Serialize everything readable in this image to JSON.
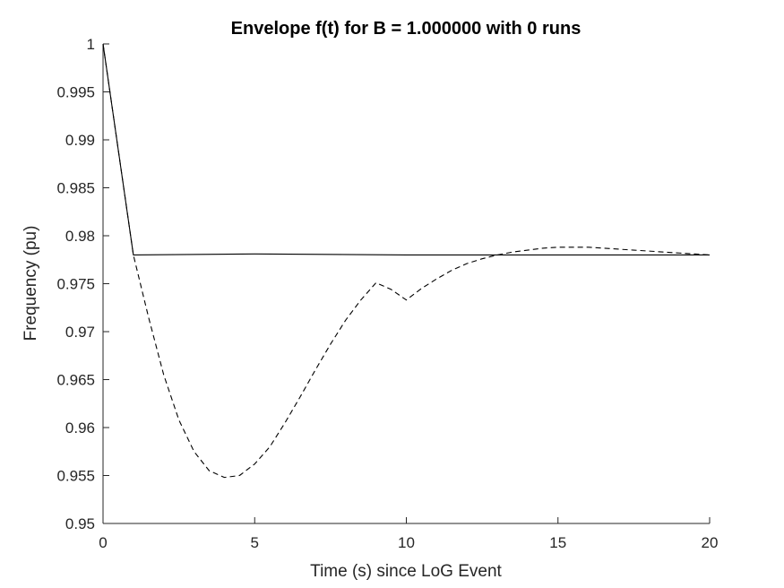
{
  "chart_data": {
    "type": "line",
    "title": "Envelope f(t) for B = 1.000000 with 0 runs",
    "xlabel": "Time (s) since LoG Event",
    "ylabel": "Frequency (pu)",
    "xlim": [
      0,
      20
    ],
    "ylim": [
      0.95,
      1
    ],
    "grid": false,
    "x_ticks": [
      0,
      5,
      10,
      15,
      20
    ],
    "x_tick_labels": [
      "0",
      "5",
      "10",
      "15",
      "20"
    ],
    "y_ticks": [
      0.95,
      0.955,
      0.96,
      0.965,
      0.97,
      0.975,
      0.98,
      0.985,
      0.99,
      0.995,
      1
    ],
    "y_tick_labels": [
      "0.95",
      "0.955",
      "0.96",
      "0.965",
      "0.97",
      "0.975",
      "0.98",
      "0.985",
      "0.99",
      "0.995",
      "1"
    ],
    "series": [
      {
        "style": "solid",
        "color": "#000000",
        "x": [
          0,
          1,
          5,
          10,
          15,
          20
        ],
        "y": [
          1.0,
          0.978,
          0.9781,
          0.978,
          0.978,
          0.978
        ]
      },
      {
        "style": "dashed",
        "color": "#000000",
        "x": [
          0,
          1,
          1.5,
          2,
          2.5,
          3,
          3.5,
          4,
          4.5,
          5,
          5.5,
          6,
          6.5,
          7,
          7.5,
          8,
          8.5,
          9,
          9.5,
          10,
          10.5,
          11,
          11.5,
          12,
          12.5,
          13,
          13.5,
          14,
          14.5,
          15,
          15.5,
          16,
          16.5,
          17,
          17.5,
          18,
          18.5,
          19,
          19.5,
          20
        ],
        "y": [
          1.0,
          0.978,
          0.9715,
          0.9655,
          0.9608,
          0.9575,
          0.9555,
          0.9548,
          0.955,
          0.9562,
          0.958,
          0.9605,
          0.9632,
          0.966,
          0.9687,
          0.9712,
          0.9733,
          0.9751,
          0.9744,
          0.9733,
          0.9745,
          0.9755,
          0.9764,
          0.9771,
          0.9776,
          0.978,
          0.9783,
          0.9785,
          0.9787,
          0.9788,
          0.9788,
          0.9788,
          0.9787,
          0.9786,
          0.9785,
          0.9784,
          0.9783,
          0.9782,
          0.9781,
          0.978
        ]
      }
    ]
  }
}
